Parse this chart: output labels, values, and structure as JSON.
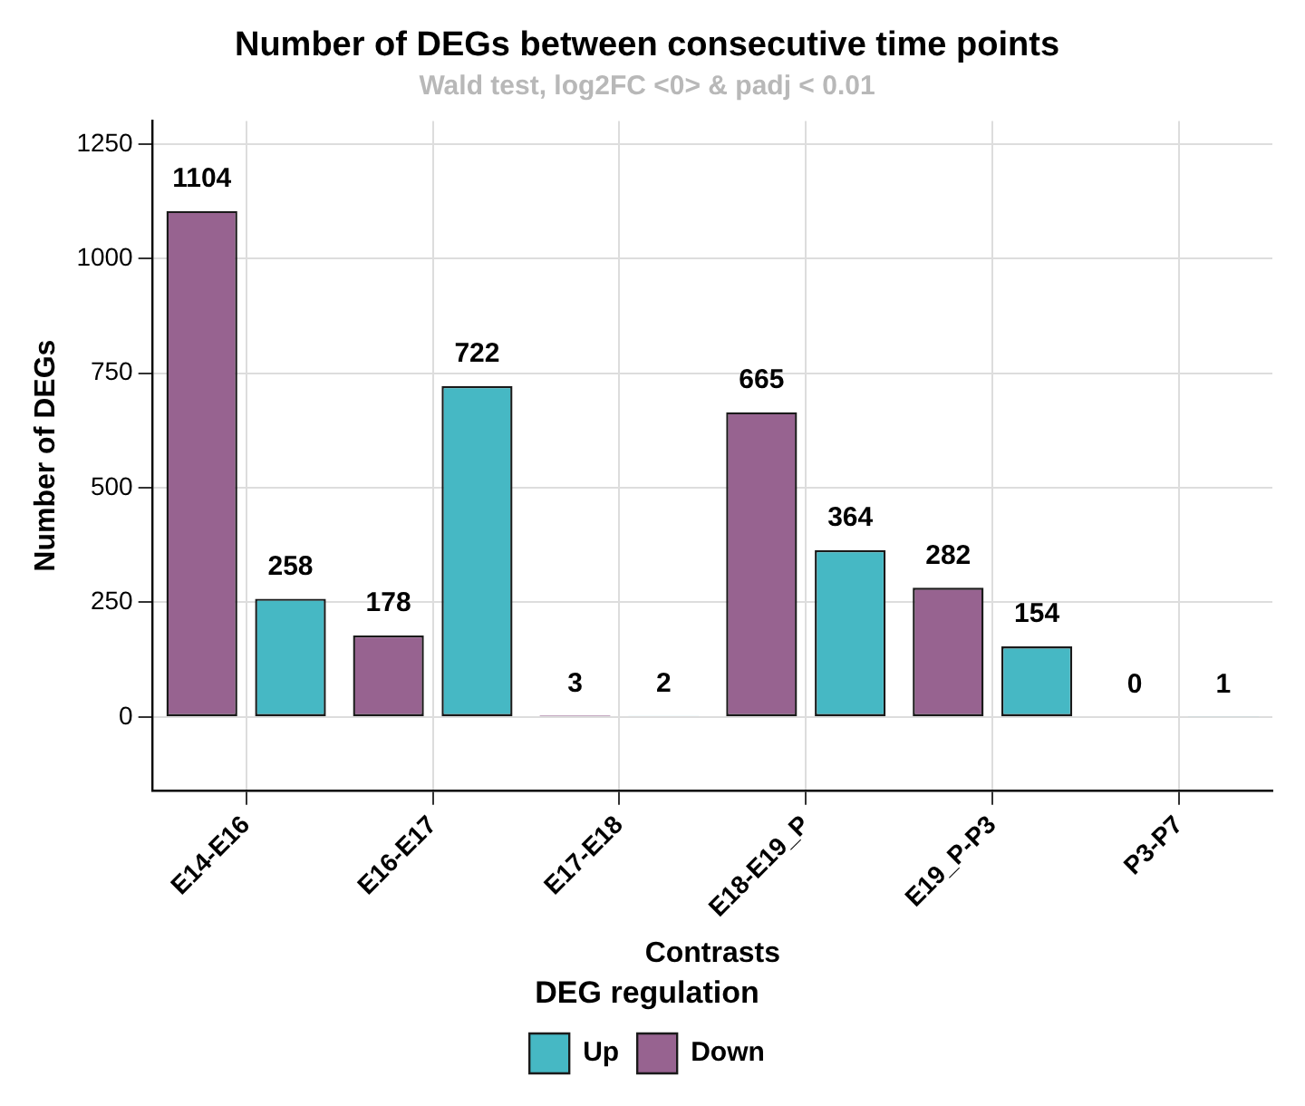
{
  "chart_data": {
    "type": "bar",
    "title": "Number of DEGs between consecutive time points",
    "subtitle": "Wald test, log2FC <0> & padj < 0.01",
    "xlabel": "Contrasts",
    "ylabel": "Number of DEGs",
    "legend_title": "DEG regulation",
    "categories": [
      "E14-E16",
      "E16-E17",
      "E17-E18",
      "E18-E19_P",
      "E19_P-P3",
      "P3-P7"
    ],
    "series": [
      {
        "name": "Down",
        "color": "#976390",
        "values": [
          1104,
          178,
          3,
          665,
          282,
          0
        ]
      },
      {
        "name": "Up",
        "color": "#46b8c4",
        "values": [
          258,
          722,
          2,
          364,
          154,
          1
        ]
      }
    ],
    "ylim": [
      -160,
      1300
    ],
    "yticks": [
      0,
      250,
      500,
      750,
      1000,
      1250
    ],
    "grid": true,
    "legend": "bottom",
    "data_labels": true
  }
}
